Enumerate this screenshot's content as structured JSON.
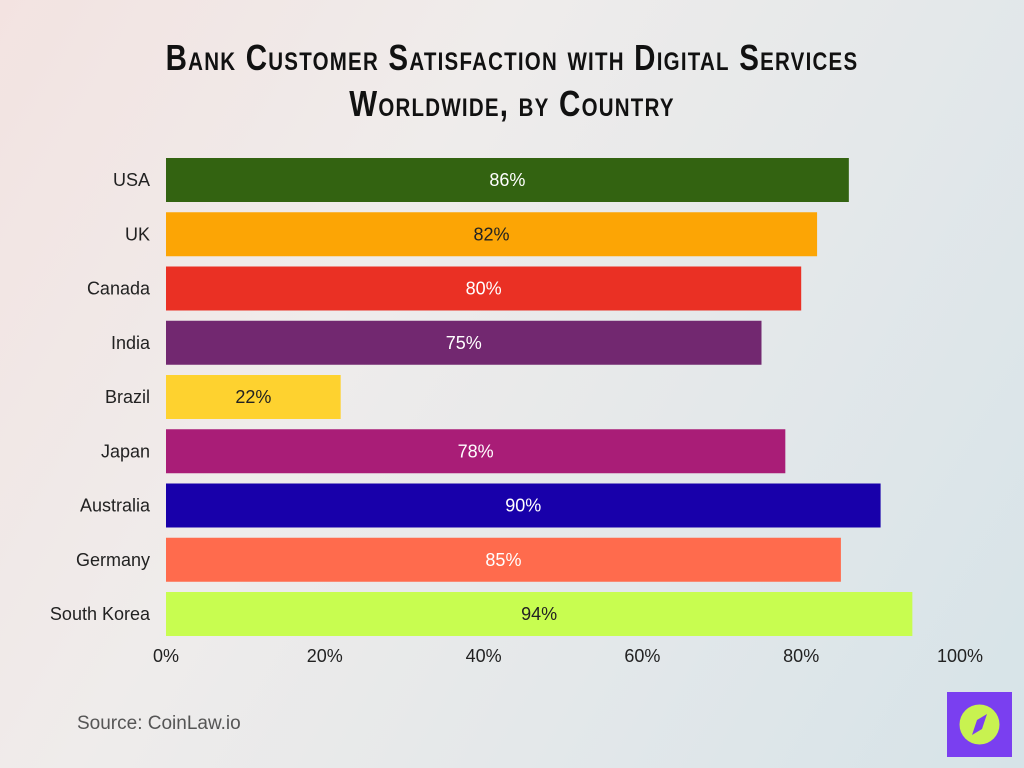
{
  "chart_data": {
    "type": "bar",
    "orientation": "horizontal",
    "title_lines": [
      "Bank Customer Satisfaction with Digital Services",
      "Worldwide, by Country"
    ],
    "categories": [
      "USA",
      "UK",
      "Canada",
      "India",
      "Brazil",
      "Japan",
      "Australia",
      "Germany",
      "South Korea"
    ],
    "values": [
      86,
      82,
      80,
      75,
      22,
      78,
      90,
      85,
      94
    ],
    "data_labels": [
      "86%",
      "82%",
      "80%",
      "75%",
      "22%",
      "78%",
      "90%",
      "85%",
      "94%"
    ],
    "colors": [
      "#336311",
      "#fca505",
      "#ea3024",
      "#722870",
      "#fed22f",
      "#a91d77",
      "#1800aa",
      "#ff6b4d",
      "#c8fd50"
    ],
    "label_colors": [
      "#ffffff",
      "#222222",
      "#ffffff",
      "#ffffff",
      "#222222",
      "#ffffff",
      "#ffffff",
      "#ffffff",
      "#222222"
    ],
    "xlim": [
      0,
      100
    ],
    "xticks": [
      0,
      20,
      40,
      60,
      80,
      100
    ],
    "xtick_labels": [
      "0%",
      "20%",
      "40%",
      "60%",
      "80%",
      "100%"
    ],
    "grid": false,
    "legend": "none"
  },
  "source": "Source: CoinLaw.io",
  "logo": {
    "icon": "compass-icon",
    "bg": "#7a3ff0",
    "fg": "#c8f250"
  }
}
